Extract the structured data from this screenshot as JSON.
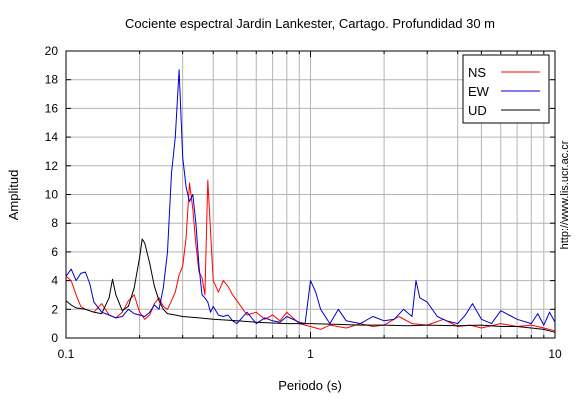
{
  "chart_data": {
    "type": "line",
    "title": "Cociente espectral Jardin Lankester, Cartago. Profundidad 30 m",
    "xlabel": "Periodo (s)",
    "ylabel": "Amplitud",
    "x_scale": "log",
    "xlim": [
      0.1,
      10
    ],
    "ylim": [
      0,
      20
    ],
    "x_ticks": [
      {
        "value": 0.1,
        "label": "0.1"
      },
      {
        "value": 1,
        "label": "1"
      },
      {
        "value": 10,
        "label": "10"
      }
    ],
    "y_ticks": [
      {
        "value": 0,
        "label": "0"
      },
      {
        "value": 2,
        "label": "2"
      },
      {
        "value": 4,
        "label": "4"
      },
      {
        "value": 6,
        "label": "6"
      },
      {
        "value": 8,
        "label": "8"
      },
      {
        "value": 10,
        "label": "10"
      },
      {
        "value": 12,
        "label": "12"
      },
      {
        "value": 14,
        "label": "14"
      },
      {
        "value": 16,
        "label": "16"
      },
      {
        "value": 18,
        "label": "18"
      },
      {
        "value": 20,
        "label": "20"
      }
    ],
    "grid": true,
    "legend_position": "top-right",
    "series": [
      {
        "name": "NS",
        "color": "#ff0000",
        "x": [
          0.1,
          0.105,
          0.11,
          0.115,
          0.12,
          0.13,
          0.14,
          0.15,
          0.16,
          0.17,
          0.18,
          0.19,
          0.2,
          0.21,
          0.22,
          0.23,
          0.24,
          0.25,
          0.26,
          0.27,
          0.28,
          0.29,
          0.3,
          0.31,
          0.32,
          0.33,
          0.34,
          0.35,
          0.36,
          0.37,
          0.38,
          0.39,
          0.4,
          0.42,
          0.44,
          0.46,
          0.48,
          0.5,
          0.55,
          0.6,
          0.65,
          0.7,
          0.75,
          0.8,
          0.9,
          1.0,
          1.1,
          1.2,
          1.4,
          1.6,
          1.8,
          2.0,
          2.3,
          2.6,
          3.0,
          3.5,
          4.0,
          4.5,
          5.0,
          6.0,
          7.0,
          8.0,
          9.0,
          10.0
        ],
        "y": [
          4.3,
          4.0,
          3.0,
          2.2,
          2.0,
          1.8,
          2.4,
          1.6,
          1.4,
          1.8,
          2.6,
          3.0,
          1.8,
          1.3,
          1.6,
          2.4,
          2.8,
          2.2,
          2.0,
          2.6,
          3.2,
          4.4,
          5.0,
          7.0,
          10.8,
          9.0,
          6.5,
          4.6,
          4.2,
          3.0,
          11.0,
          7.5,
          4.0,
          3.2,
          4.0,
          3.6,
          3.0,
          2.6,
          1.6,
          1.8,
          1.3,
          1.6,
          1.2,
          1.8,
          1.0,
          0.8,
          0.6,
          0.9,
          0.7,
          1.0,
          0.8,
          0.9,
          1.5,
          1.0,
          0.9,
          1.3,
          0.8,
          0.9,
          0.7,
          1.0,
          0.8,
          0.9,
          0.7,
          0.5
        ]
      },
      {
        "name": "EW",
        "color": "#0000cc",
        "x": [
          0.1,
          0.105,
          0.11,
          0.115,
          0.12,
          0.125,
          0.13,
          0.14,
          0.15,
          0.16,
          0.17,
          0.18,
          0.19,
          0.2,
          0.21,
          0.22,
          0.23,
          0.24,
          0.25,
          0.26,
          0.27,
          0.28,
          0.29,
          0.3,
          0.31,
          0.32,
          0.33,
          0.34,
          0.35,
          0.36,
          0.37,
          0.38,
          0.39,
          0.4,
          0.42,
          0.44,
          0.46,
          0.48,
          0.5,
          0.55,
          0.6,
          0.65,
          0.7,
          0.75,
          0.8,
          0.9,
          0.95,
          1.0,
          1.05,
          1.1,
          1.2,
          1.3,
          1.4,
          1.6,
          1.8,
          2.0,
          2.2,
          2.4,
          2.6,
          2.7,
          2.8,
          3.0,
          3.3,
          3.6,
          4.0,
          4.3,
          4.6,
          5.0,
          5.5,
          6.0,
          7.0,
          8.0,
          8.5,
          9.0,
          9.5,
          10.0
        ],
        "y": [
          4.3,
          4.8,
          4.0,
          4.5,
          4.6,
          3.8,
          2.5,
          1.8,
          1.6,
          1.4,
          1.5,
          2.0,
          1.7,
          1.6,
          1.5,
          1.8,
          2.3,
          2.0,
          3.5,
          6.0,
          11.5,
          14.0,
          18.7,
          12.6,
          10.5,
          9.5,
          10.0,
          8.0,
          5.0,
          3.0,
          2.8,
          2.5,
          1.8,
          2.2,
          1.6,
          1.5,
          1.6,
          1.2,
          1.0,
          1.8,
          1.0,
          1.4,
          1.2,
          1.1,
          1.5,
          1.1,
          1.0,
          4.0,
          3.2,
          2.0,
          1.0,
          2.0,
          1.2,
          1.0,
          1.5,
          1.2,
          1.3,
          2.0,
          1.5,
          4.0,
          2.8,
          2.5,
          1.5,
          1.2,
          1.0,
          1.6,
          2.4,
          1.3,
          1.0,
          1.9,
          1.3,
          1.0,
          1.7,
          0.9,
          1.8,
          1.1
        ]
      },
      {
        "name": "UD",
        "color": "#000000",
        "x": [
          0.1,
          0.105,
          0.11,
          0.12,
          0.13,
          0.14,
          0.15,
          0.155,
          0.16,
          0.17,
          0.18,
          0.19,
          0.2,
          0.205,
          0.21,
          0.22,
          0.23,
          0.24,
          0.25,
          0.26,
          0.28,
          0.3,
          0.35,
          0.4,
          0.5,
          0.6,
          0.8,
          1.0,
          1.3,
          1.6,
          2.0,
          2.5,
          3.0,
          4.0,
          5.0,
          6.0,
          7.0,
          8.0,
          9.0,
          10.0
        ],
        "y": [
          2.6,
          2.3,
          2.1,
          2.0,
          1.8,
          1.7,
          2.8,
          4.1,
          3.0,
          1.9,
          2.2,
          3.5,
          5.6,
          6.9,
          6.6,
          5.2,
          3.6,
          2.6,
          2.0,
          1.7,
          1.6,
          1.5,
          1.4,
          1.3,
          1.2,
          1.1,
          1.0,
          1.0,
          0.95,
          0.9,
          0.9,
          0.85,
          0.9,
          0.85,
          0.9,
          0.8,
          0.8,
          0.7,
          0.6,
          0.4
        ]
      }
    ],
    "side_note": "http://www.lis.ucr.ac.cr"
  }
}
